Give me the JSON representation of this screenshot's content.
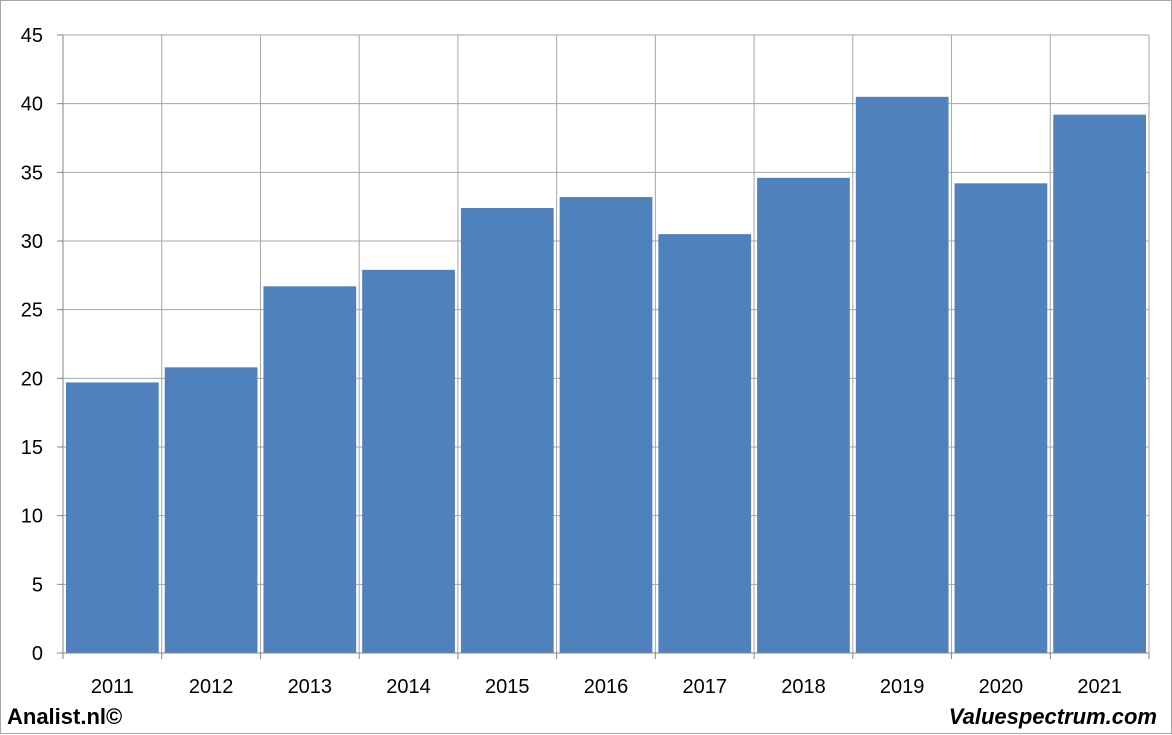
{
  "chart_data": {
    "type": "bar",
    "categories": [
      "2011",
      "2012",
      "2013",
      "2014",
      "2015",
      "2016",
      "2017",
      "2018",
      "2019",
      "2020",
      "2021"
    ],
    "values": [
      19.7,
      20.8,
      26.7,
      27.9,
      32.4,
      33.2,
      30.5,
      34.6,
      40.5,
      34.2,
      39.2
    ],
    "title": "",
    "xlabel": "",
    "ylabel": "",
    "ylim": [
      0,
      45
    ],
    "yticks": [
      "0",
      "5",
      "10",
      "15",
      "20",
      "25",
      "30",
      "35",
      "40",
      "45"
    ],
    "grid": true,
    "bar_color": "#4f81bd",
    "legend": "none"
  },
  "footer": {
    "left": "Analist.nl©",
    "right": "Valuespectrum.com"
  }
}
